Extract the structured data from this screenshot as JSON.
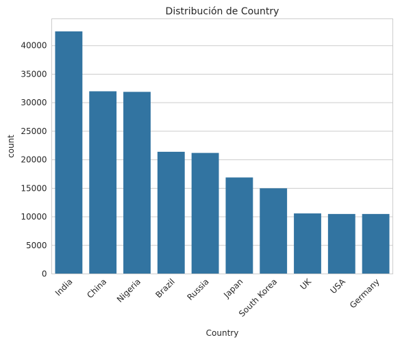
{
  "chart_data": {
    "type": "bar",
    "title": "Distribución de Country",
    "xlabel": "Country",
    "ylabel": "count",
    "categories": [
      "India",
      "China",
      "Nigeria",
      "Brazil",
      "Russia",
      "Japan",
      "South Korea",
      "UK",
      "USA",
      "Germany"
    ],
    "values": [
      42500,
      32000,
      31900,
      21400,
      21200,
      16900,
      15000,
      10600,
      10500,
      10500
    ],
    "ylim": [
      0,
      44700
    ],
    "yticks": [
      0,
      5000,
      10000,
      15000,
      20000,
      25000,
      30000,
      35000,
      40000
    ],
    "ytick_labels": [
      "0",
      "5000",
      "10000",
      "15000",
      "20000",
      "25000",
      "30000",
      "35000",
      "40000"
    ],
    "grid": true,
    "bar_color": "#3274a1",
    "grid_color": "#cccccc"
  }
}
